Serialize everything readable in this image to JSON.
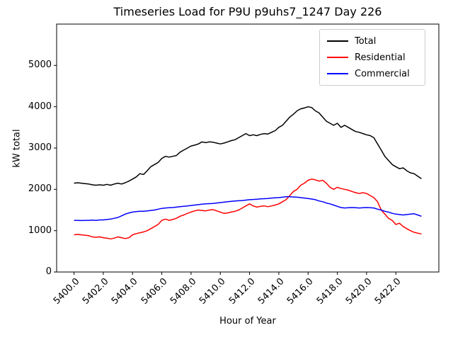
{
  "chart_data": {
    "type": "line",
    "title": "Timeseries Load for P9U p9uhs7_1247  Day 226",
    "xlabel": "Hour of Year",
    "ylabel": "kW total",
    "xlim": [
      5398.81,
      5424.94
    ],
    "ylim": [
      0,
      6000
    ],
    "xticks": [
      5400,
      5402,
      5404,
      5406,
      5408,
      5410,
      5412,
      5414,
      5416,
      5418,
      5420,
      5422
    ],
    "xtick_labels": [
      "5400.0",
      "5402.0",
      "5404.0",
      "5406.0",
      "5408.0",
      "5410.0",
      "5412.0",
      "5414.0",
      "5416.0",
      "5418.0",
      "5420.0",
      "5422.0"
    ],
    "yticks": [
      0,
      1000,
      2000,
      3000,
      4000,
      5000
    ],
    "legend_position": "upper right",
    "grid": false,
    "x_start": 5400.0,
    "x_step": 0.25,
    "series": [
      {
        "name": "Total",
        "color": "#000000",
        "values": [
          2150,
          2160,
          2150,
          2140,
          2130,
          2110,
          2100,
          2110,
          2100,
          2120,
          2100,
          2130,
          2150,
          2130,
          2160,
          2200,
          2250,
          2300,
          2380,
          2360,
          2450,
          2550,
          2600,
          2650,
          2750,
          2800,
          2780,
          2800,
          2820,
          2900,
          2950,
          3000,
          3050,
          3070,
          3100,
          3150,
          3130,
          3150,
          3140,
          3120,
          3100,
          3120,
          3150,
          3180,
          3200,
          3250,
          3300,
          3350,
          3300,
          3320,
          3300,
          3330,
          3350,
          3340,
          3380,
          3420,
          3500,
          3550,
          3650,
          3750,
          3820,
          3900,
          3950,
          3970,
          4000,
          3980,
          3900,
          3850,
          3750,
          3650,
          3600,
          3550,
          3600,
          3500,
          3550,
          3500,
          3450,
          3400,
          3380,
          3350,
          3320,
          3300,
          3250,
          3100,
          2950,
          2800,
          2700,
          2600,
          2550,
          2500,
          2520,
          2450,
          2400,
          2380,
          2320,
          2260
        ]
      },
      {
        "name": "Residential",
        "color": "#ff0000",
        "values": [
          900,
          910,
          900,
          890,
          880,
          850,
          840,
          850,
          830,
          820,
          800,
          820,
          850,
          830,
          810,
          830,
          900,
          930,
          950,
          970,
          1000,
          1050,
          1100,
          1150,
          1250,
          1280,
          1250,
          1270,
          1300,
          1350,
          1380,
          1420,
          1450,
          1480,
          1500,
          1490,
          1480,
          1500,
          1510,
          1480,
          1450,
          1420,
          1430,
          1450,
          1470,
          1500,
          1550,
          1600,
          1650,
          1600,
          1570,
          1590,
          1600,
          1580,
          1600,
          1620,
          1650,
          1700,
          1750,
          1850,
          1950,
          2000,
          2100,
          2150,
          2220,
          2250,
          2230,
          2200,
          2220,
          2150,
          2050,
          2000,
          2050,
          2020,
          2000,
          1980,
          1950,
          1920,
          1900,
          1920,
          1900,
          1850,
          1800,
          1700,
          1500,
          1400,
          1300,
          1250,
          1150,
          1180,
          1100,
          1050,
          1000,
          960,
          940,
          920
        ]
      },
      {
        "name": "Commercial",
        "color": "#0000ff",
        "values": [
          1250,
          1250,
          1245,
          1250,
          1250,
          1255,
          1250,
          1260,
          1260,
          1270,
          1280,
          1300,
          1320,
          1360,
          1400,
          1430,
          1450,
          1460,
          1470,
          1470,
          1480,
          1490,
          1500,
          1520,
          1540,
          1550,
          1555,
          1560,
          1570,
          1580,
          1590,
          1600,
          1610,
          1620,
          1630,
          1640,
          1650,
          1655,
          1660,
          1670,
          1680,
          1690,
          1700,
          1710,
          1720,
          1725,
          1730,
          1740,
          1750,
          1755,
          1760,
          1770,
          1775,
          1780,
          1790,
          1795,
          1800,
          1810,
          1820,
          1820,
          1815,
          1810,
          1800,
          1790,
          1780,
          1765,
          1750,
          1720,
          1700,
          1670,
          1650,
          1620,
          1590,
          1560,
          1550,
          1555,
          1560,
          1555,
          1550,
          1555,
          1560,
          1555,
          1550,
          1520,
          1500,
          1470,
          1450,
          1420,
          1400,
          1390,
          1380,
          1390,
          1400,
          1410,
          1380,
          1350
        ]
      }
    ]
  }
}
